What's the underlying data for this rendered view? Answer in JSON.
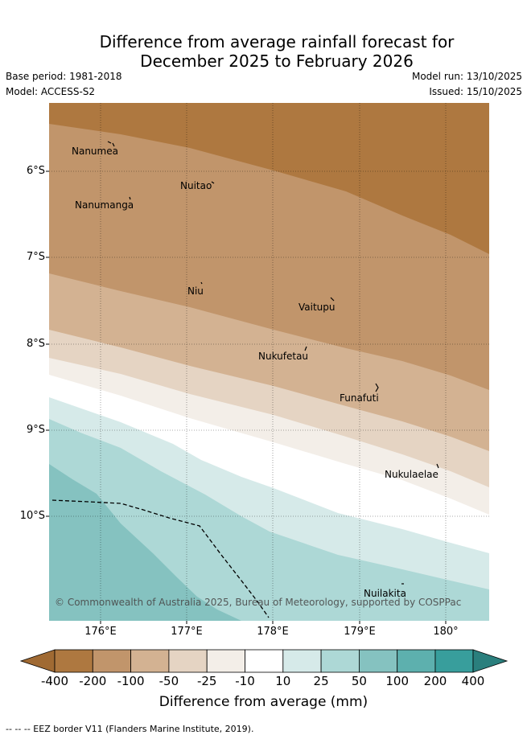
{
  "title": {
    "line1": "Difference from average rainfall forecast for",
    "line2": "December 2025 to February 2026"
  },
  "meta": {
    "base_period": "Base period: 1981-2018",
    "model": "Model: ACCESS-S2",
    "model_run": "Model run: 13/10/2025",
    "issued": "Issued: 15/10/2025"
  },
  "axes": {
    "y_ticks": [
      "6°S",
      "7°S",
      "8°S",
      "9°S",
      "10°S"
    ],
    "x_ticks": [
      "176°E",
      "177°E",
      "178°E",
      "179°E",
      "180°"
    ]
  },
  "places": [
    {
      "name": "Nanumea"
    },
    {
      "name": "Nuitao"
    },
    {
      "name": "Nanumanga"
    },
    {
      "name": "Niu"
    },
    {
      "name": "Vaitupu"
    },
    {
      "name": "Nukufetau"
    },
    {
      "name": "Funafuti"
    },
    {
      "name": "Nukulaelae"
    },
    {
      "name": "Nuilakita"
    }
  ],
  "copyright": "© Commonwealth of Australia 2025, Bureau of Meteorology, supported by COSPPac",
  "colorbar": {
    "ticks": [
      "-400",
      "-200",
      "-100",
      "-50",
      "-25",
      "-10",
      "10",
      "25",
      "50",
      "100",
      "200",
      "400"
    ],
    "colors": [
      "#a06a33",
      "#ae7840",
      "#c1956b",
      "#d3b292",
      "#e5d4c3",
      "#f3eee8",
      "#ffffff",
      "#d6eae9",
      "#add8d6",
      "#85c2c0",
      "#5db0ae",
      "#389e9c",
      "#2a7f7d"
    ],
    "label": "Difference from average (mm)"
  },
  "footnote": "-- -- -- EEZ border V11 (Flanders Marine Institute, 2019)."
}
